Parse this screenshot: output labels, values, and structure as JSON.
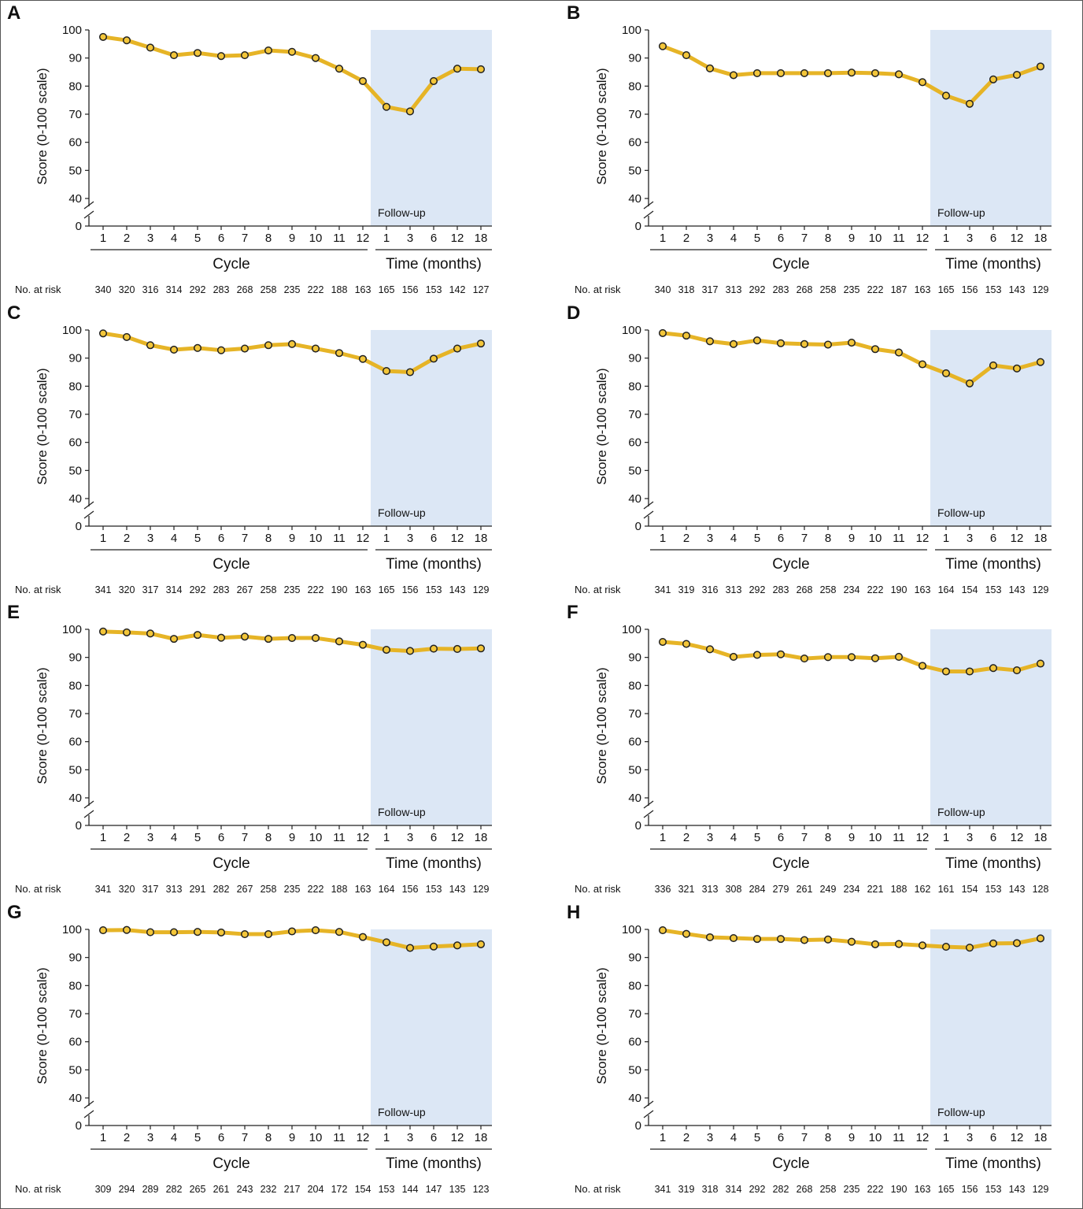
{
  "figure": {
    "x_groups": [
      "Cycle",
      "Time (months)"
    ],
    "risk_row_label": "No. at risk",
    "shaded_region_label": "Follow-up",
    "colors": {
      "line": "#e6b426",
      "marker_fill": "#f3c63a",
      "marker_edge": "#222222",
      "followup_fill": "#dce7f5",
      "axis": "#222222"
    }
  },
  "chart_data": [
    {
      "panel": "A",
      "type": "line",
      "x": [
        "1",
        "2",
        "3",
        "4",
        "5",
        "6",
        "7",
        "8",
        "9",
        "10",
        "11",
        "12",
        "1",
        "3",
        "6",
        "12",
        "18"
      ],
      "ylabel": "Score (0-100 scale)",
      "ylim": [
        40,
        100
      ],
      "yticks": [
        0,
        40,
        50,
        60,
        70,
        80,
        90,
        100
      ],
      "y_axis_break": true,
      "series": [
        {
          "values": [
            97.5,
            96.3,
            93.7,
            91.0,
            91.8,
            90.7,
            91.0,
            92.7,
            92.2,
            90.0,
            86.2,
            81.8,
            72.6,
            71.0,
            81.8,
            86.2,
            86.0
          ]
        }
      ],
      "at_risk": [
        340,
        320,
        316,
        314,
        292,
        283,
        268,
        258,
        235,
        222,
        188,
        163,
        165,
        156,
        153,
        142,
        127
      ]
    },
    {
      "panel": "B",
      "type": "line",
      "x": [
        "1",
        "2",
        "3",
        "4",
        "5",
        "6",
        "7",
        "8",
        "9",
        "10",
        "11",
        "12",
        "1",
        "3",
        "6",
        "12",
        "18"
      ],
      "ylabel": "Score (0-100 scale)",
      "ylim": [
        40,
        100
      ],
      "yticks": [
        0,
        40,
        50,
        60,
        70,
        80,
        90,
        100
      ],
      "y_axis_break": true,
      "series": [
        {
          "values": [
            94.2,
            91.0,
            86.3,
            83.9,
            84.6,
            84.6,
            84.6,
            84.6,
            84.8,
            84.6,
            84.2,
            81.4,
            76.6,
            73.7,
            82.4,
            84.0,
            87.0
          ]
        }
      ],
      "at_risk": [
        340,
        318,
        317,
        313,
        292,
        283,
        268,
        258,
        235,
        222,
        187,
        163,
        165,
        156,
        153,
        143,
        129
      ]
    },
    {
      "panel": "C",
      "type": "line",
      "x": [
        "1",
        "2",
        "3",
        "4",
        "5",
        "6",
        "7",
        "8",
        "9",
        "10",
        "11",
        "12",
        "1",
        "3",
        "6",
        "12",
        "18"
      ],
      "ylabel": "Score (0-100 scale)",
      "ylim": [
        40,
        100
      ],
      "yticks": [
        0,
        40,
        50,
        60,
        70,
        80,
        90,
        100
      ],
      "y_axis_break": true,
      "series": [
        {
          "values": [
            98.8,
            97.5,
            94.6,
            93.0,
            93.6,
            92.8,
            93.4,
            94.6,
            95.0,
            93.4,
            91.8,
            89.7,
            85.4,
            85.0,
            89.8,
            93.4,
            95.2
          ]
        }
      ],
      "at_risk": [
        341,
        320,
        317,
        314,
        292,
        283,
        267,
        258,
        235,
        222,
        190,
        163,
        165,
        156,
        153,
        143,
        129
      ]
    },
    {
      "panel": "D",
      "type": "line",
      "x": [
        "1",
        "2",
        "3",
        "4",
        "5",
        "6",
        "7",
        "8",
        "9",
        "10",
        "11",
        "12",
        "1",
        "3",
        "6",
        "12",
        "18"
      ],
      "ylabel": "Score (0-100 scale)",
      "ylim": [
        40,
        100
      ],
      "yticks": [
        0,
        40,
        50,
        60,
        70,
        80,
        90,
        100
      ],
      "y_axis_break": true,
      "series": [
        {
          "values": [
            98.9,
            98.0,
            96.0,
            95.0,
            96.3,
            95.3,
            95.0,
            94.8,
            95.5,
            93.2,
            92.0,
            87.8,
            84.6,
            81.0,
            87.4,
            86.3,
            88.6
          ]
        }
      ],
      "at_risk": [
        341,
        319,
        316,
        313,
        292,
        283,
        268,
        258,
        234,
        222,
        190,
        163,
        164,
        154,
        153,
        143,
        129
      ]
    },
    {
      "panel": "E",
      "type": "line",
      "x": [
        "1",
        "2",
        "3",
        "4",
        "5",
        "6",
        "7",
        "8",
        "9",
        "10",
        "11",
        "12",
        "1",
        "3",
        "6",
        "12",
        "18"
      ],
      "ylabel": "Score (0-100 scale)",
      "ylim": [
        40,
        100
      ],
      "yticks": [
        0,
        40,
        50,
        60,
        70,
        80,
        90,
        100
      ],
      "y_axis_break": true,
      "series": [
        {
          "values": [
            99.2,
            98.9,
            98.5,
            96.6,
            98.0,
            97.0,
            97.4,
            96.6,
            96.9,
            96.9,
            95.7,
            94.5,
            92.7,
            92.3,
            93.1,
            93.0,
            93.2
          ]
        }
      ],
      "at_risk": [
        341,
        320,
        317,
        313,
        291,
        282,
        267,
        258,
        235,
        222,
        188,
        163,
        164,
        156,
        153,
        143,
        129
      ]
    },
    {
      "panel": "F",
      "type": "line",
      "x": [
        "1",
        "2",
        "3",
        "4",
        "5",
        "6",
        "7",
        "8",
        "9",
        "10",
        "11",
        "12",
        "1",
        "3",
        "6",
        "12",
        "18"
      ],
      "ylabel": "Score (0-100 scale)",
      "ylim": [
        40,
        100
      ],
      "yticks": [
        0,
        40,
        50,
        60,
        70,
        80,
        90,
        100
      ],
      "y_axis_break": true,
      "series": [
        {
          "values": [
            95.5,
            94.8,
            92.9,
            90.2,
            90.9,
            91.1,
            89.6,
            90.1,
            90.1,
            89.7,
            90.2,
            87.0,
            85.0,
            85.0,
            86.2,
            85.4,
            87.8
          ]
        }
      ],
      "at_risk": [
        336,
        321,
        313,
        308,
        284,
        279,
        261,
        249,
        234,
        221,
        188,
        162,
        161,
        154,
        153,
        143,
        128
      ]
    },
    {
      "panel": "G",
      "type": "line",
      "x": [
        "1",
        "2",
        "3",
        "4",
        "5",
        "6",
        "7",
        "8",
        "9",
        "10",
        "11",
        "12",
        "1",
        "3",
        "6",
        "12",
        "18"
      ],
      "ylabel": "Score (0-100 scale)",
      "ylim": [
        40,
        100
      ],
      "yticks": [
        0,
        40,
        50,
        60,
        70,
        80,
        90,
        100
      ],
      "y_axis_break": true,
      "series": [
        {
          "values": [
            99.7,
            99.8,
            99.0,
            99.0,
            99.1,
            98.9,
            98.3,
            98.3,
            99.3,
            99.7,
            99.1,
            97.3,
            95.4,
            93.4,
            93.9,
            94.3,
            94.7
          ]
        }
      ],
      "at_risk": [
        309,
        294,
        289,
        282,
        265,
        261,
        243,
        232,
        217,
        204,
        172,
        154,
        153,
        144,
        147,
        135,
        123
      ]
    },
    {
      "panel": "H",
      "type": "line",
      "x": [
        "1",
        "2",
        "3",
        "4",
        "5",
        "6",
        "7",
        "8",
        "9",
        "10",
        "11",
        "12",
        "1",
        "3",
        "6",
        "12",
        "18"
      ],
      "ylabel": "Score (0-100 scale)",
      "ylim": [
        40,
        100
      ],
      "yticks": [
        0,
        40,
        50,
        60,
        70,
        80,
        90,
        100
      ],
      "y_axis_break": true,
      "series": [
        {
          "values": [
            99.7,
            98.4,
            97.2,
            96.9,
            96.6,
            96.6,
            96.2,
            96.4,
            95.6,
            94.7,
            94.8,
            94.3,
            93.8,
            93.5,
            95.0,
            95.1,
            96.8
          ]
        }
      ],
      "at_risk": [
        341,
        319,
        318,
        314,
        292,
        282,
        268,
        258,
        235,
        222,
        190,
        163,
        165,
        156,
        153,
        143,
        129
      ]
    }
  ]
}
